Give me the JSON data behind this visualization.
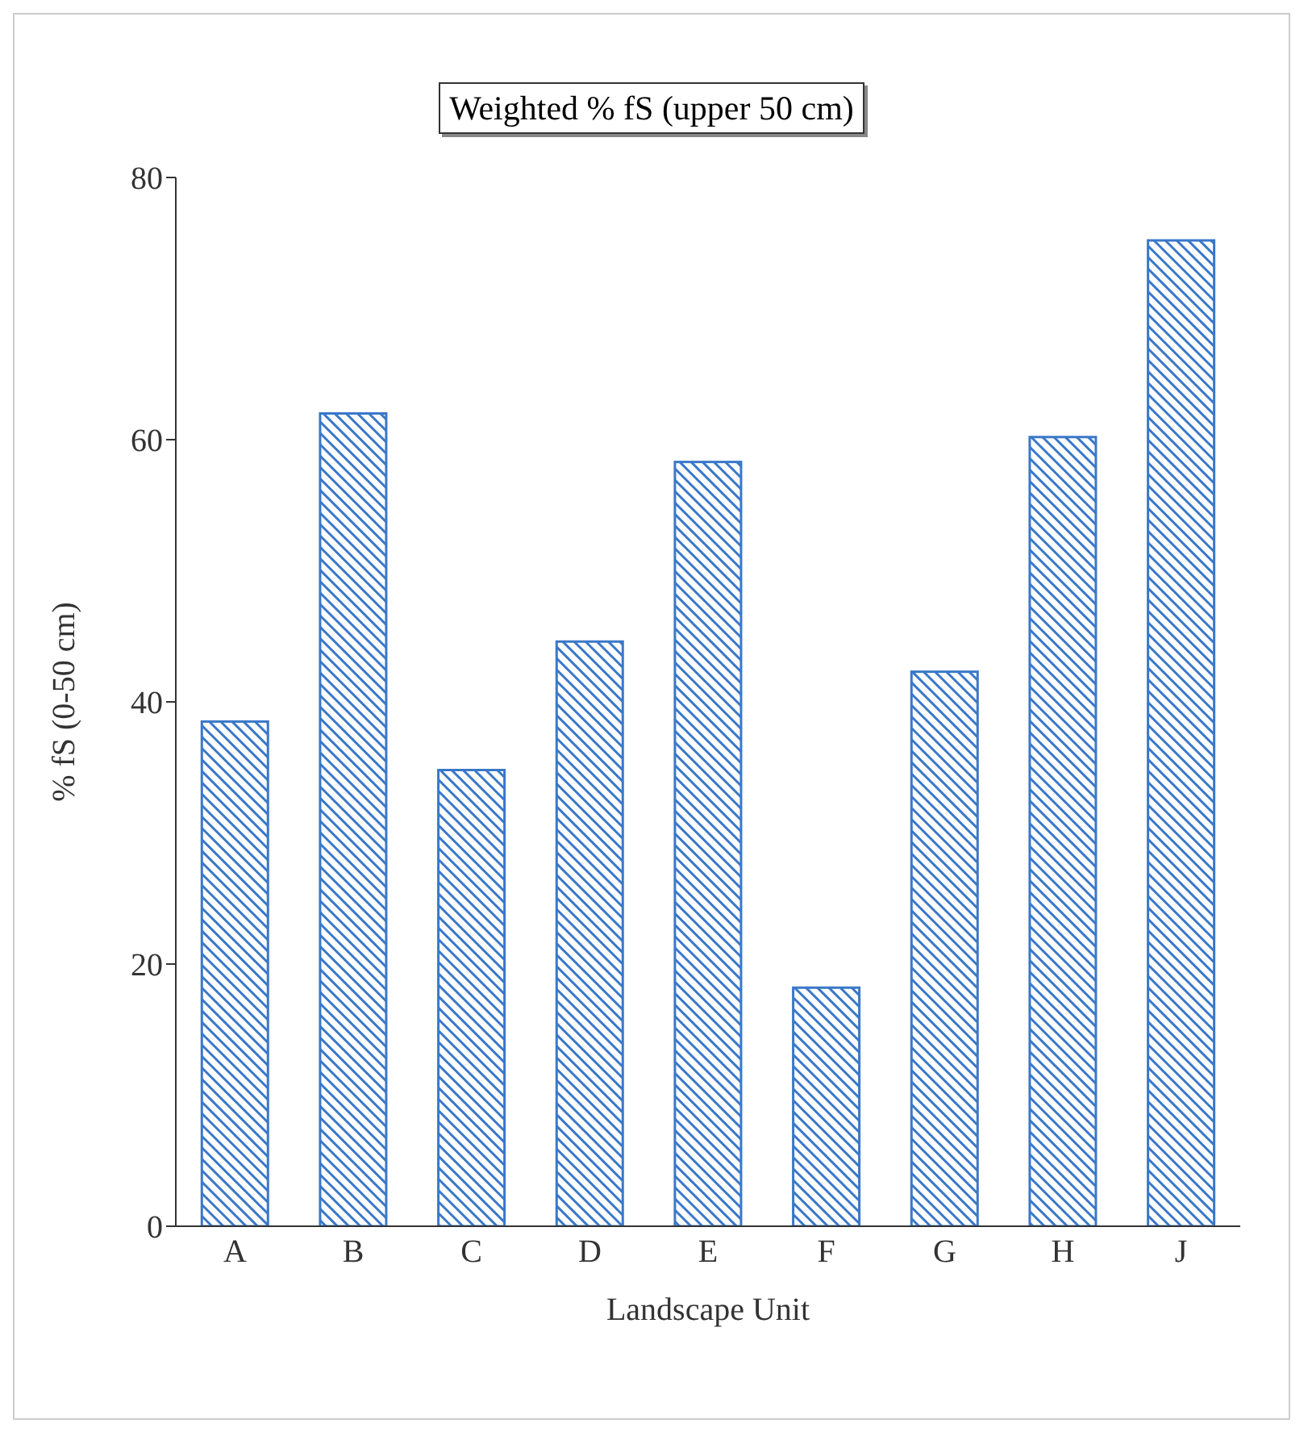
{
  "chart_data": {
    "type": "bar",
    "title": "Weighted % fS (upper 50 cm)",
    "xlabel": "Landscape Unit",
    "ylabel": "% fS (0-50 cm)",
    "categories": [
      "A",
      "B",
      "C",
      "D",
      "E",
      "F",
      "G",
      "H",
      "J"
    ],
    "values": [
      38.5,
      62,
      34.8,
      44.6,
      58.3,
      18.2,
      42.3,
      60.2,
      75.2
    ],
    "color": "#3a78c9",
    "ylim": [
      0,
      80
    ],
    "yticks": [
      0,
      20,
      40,
      60,
      80
    ],
    "grid": false,
    "legend": false
  }
}
